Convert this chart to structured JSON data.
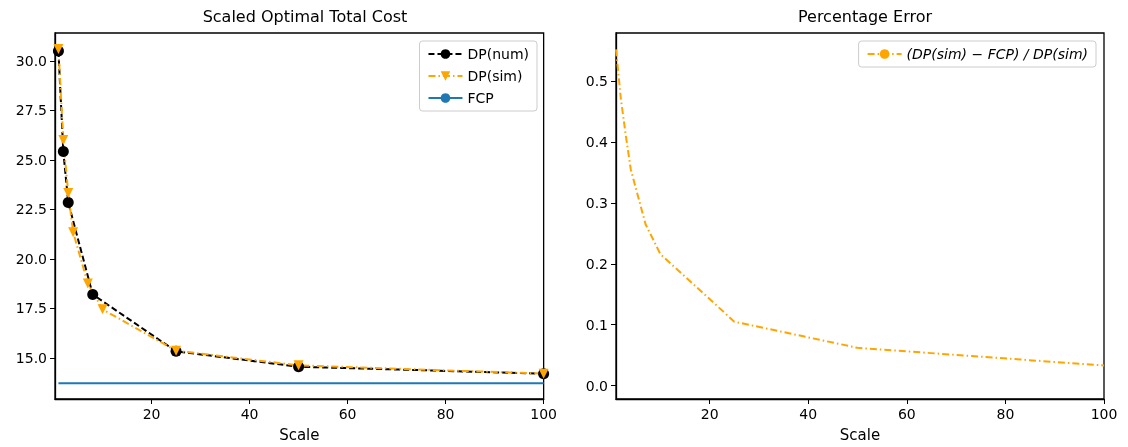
{
  "chart_data": [
    {
      "type": "line",
      "title": "Scaled Optimal Total Cost",
      "xlabel": "Scale",
      "xlim": [
        0.3,
        100
      ],
      "xticks": [
        20,
        40,
        60,
        80,
        100
      ],
      "ylim": [
        12.92,
        31.41
      ],
      "yticks": [
        {
          "value": 15,
          "label": "15.0"
        },
        {
          "value": 17.5,
          "label": "17.5"
        },
        {
          "value": 20,
          "label": "20.0"
        },
        {
          "value": 22.5,
          "label": "22.5"
        },
        {
          "value": 25,
          "label": "25.0"
        },
        {
          "value": 27.5,
          "label": "27.5"
        },
        {
          "value": 30,
          "label": "30.0"
        }
      ],
      "grid": false,
      "legend": "top right",
      "series": [
        {
          "name": "DP(num)",
          "color": "#000000",
          "marker": "circle",
          "line_style": "dashed",
          "x": [
            1,
            2,
            3,
            8,
            25,
            50,
            100
          ],
          "values": [
            30.5,
            25.42,
            22.85,
            18.2,
            15.33,
            14.55,
            14.2
          ]
        },
        {
          "name": "DP(sim)",
          "color": "#ffa500",
          "marker": "triangle_down",
          "line_style": "dashdot",
          "x": [
            1,
            2,
            3,
            4,
            7,
            10,
            25,
            50,
            100
          ],
          "values": [
            30.6,
            26.0,
            23.33,
            21.35,
            18.75,
            17.45,
            15.36,
            14.62,
            14.2
          ]
        },
        {
          "name": "FCP",
          "color": "#1f77b4",
          "marker": "none",
          "line_style": "solid",
          "x": [
            1,
            100
          ],
          "values": [
            13.71,
            13.71
          ]
        }
      ]
    },
    {
      "type": "line",
      "title": "Percentage Error",
      "xlabel": "Scale",
      "xlim": [
        1,
        100
      ],
      "xticks": [
        20,
        40,
        60,
        80,
        100
      ],
      "ylim": [
        -0.022,
        0.579
      ],
      "yticks": [
        {
          "value": 0,
          "label": "0.0"
        },
        {
          "value": 0.1,
          "label": "0.1"
        },
        {
          "value": 0.2,
          "label": "0.2"
        },
        {
          "value": 0.3,
          "label": "0.3"
        },
        {
          "value": 0.4,
          "label": "0.4"
        },
        {
          "value": 0.5,
          "label": "0.5"
        }
      ],
      "grid": false,
      "legend": "top right",
      "series": [
        {
          "name": "(DP(sim) − FCP) / DP(sim)",
          "color": "#ffa500",
          "marker": "none",
          "line_style": "dashdot",
          "x": [
            1,
            2,
            3,
            4,
            7,
            10,
            25,
            50,
            100
          ],
          "values": [
            0.552,
            0.47,
            0.41,
            0.355,
            0.265,
            0.216,
            0.105,
            0.062,
            0.033
          ]
        }
      ]
    }
  ]
}
